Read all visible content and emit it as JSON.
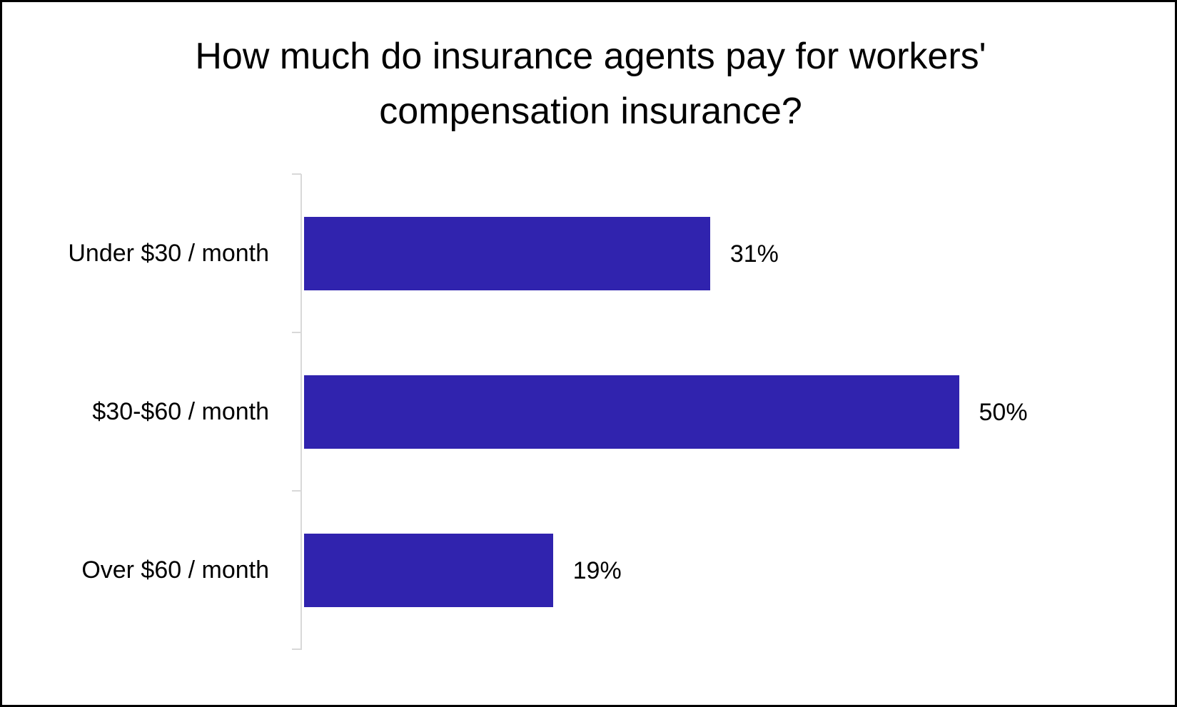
{
  "chart_data": {
    "type": "bar",
    "orientation": "horizontal",
    "title": "How much do insurance agents pay for workers' compensation insurance?",
    "title_lines": [
      "How much do insurance agents pay for workers'",
      "compensation insurance?"
    ],
    "categories": [
      "Under $30 / month",
      "$30-$60 / month",
      "Over $60 / month"
    ],
    "values": [
      31,
      50,
      19
    ],
    "value_labels": [
      "31%",
      "50%",
      "19%"
    ],
    "unit": "%",
    "xlabel": "",
    "ylabel": "",
    "x_axis_visible": false,
    "grid": false,
    "legend": null,
    "bar_color": "#3023AE",
    "axis_color": "#D9D9D9"
  }
}
